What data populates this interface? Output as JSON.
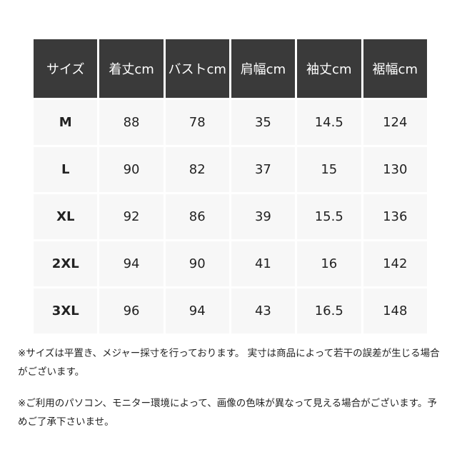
{
  "table": {
    "headers": [
      "サイズ",
      "着丈cm",
      "バストcm",
      "肩幅cm",
      "袖丈cm",
      "裾幅cm"
    ],
    "rows": [
      [
        "M",
        "88",
        "78",
        "35",
        "14.5",
        "124"
      ],
      [
        "L",
        "90",
        "82",
        "37",
        "15",
        "130"
      ],
      [
        "XL",
        "92",
        "86",
        "39",
        "15.5",
        "136"
      ],
      [
        "2XL",
        "94",
        "90",
        "41",
        "16",
        "142"
      ],
      [
        "3XL",
        "96",
        "94",
        "43",
        "16.5",
        "148"
      ]
    ]
  },
  "notes": [
    "※サイズは平置き、メジャー採寸を行っております。 実寸は商品によって若干の誤差が生じる場合がございます。",
    "※ご利用のパソコン、モニター環境によって、画像の色味が異なって見える場合がございます。予めご了承下さいませ。"
  ]
}
